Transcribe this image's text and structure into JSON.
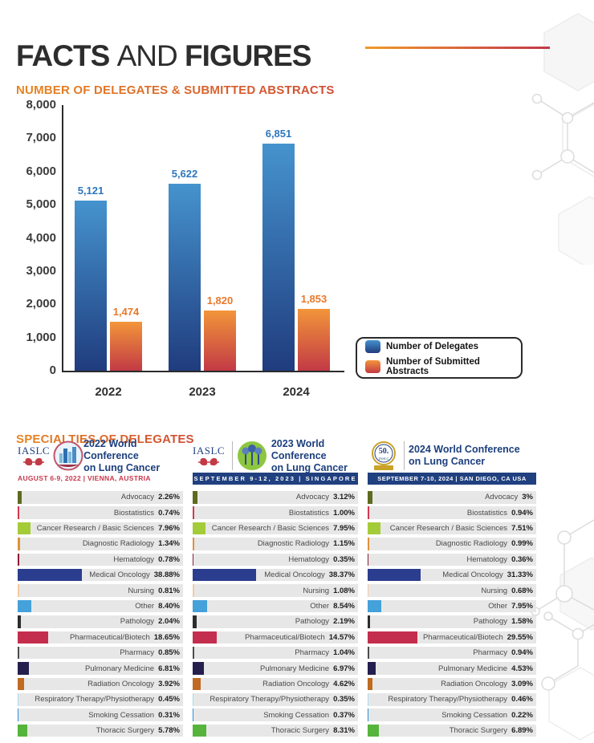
{
  "page_title": {
    "part1": "FACTS",
    "part2": "AND",
    "part3": "FIGURES"
  },
  "sections": {
    "chart_heading": "NUMBER OF DELEGATES & SUBMITTED ABSTRACTS",
    "specialties_heading": "SPECIALTIES OF DELEGATES"
  },
  "conferences": [
    {
      "org": "IASLC",
      "title_line1": "2022 World Conference",
      "title_line2": "on Lung Cancer",
      "banner": "AUGUST 6-9, 2022 | VIENNA, AUSTRIA",
      "banner_style": "red-text",
      "emblem": "vienna-city-emblem"
    },
    {
      "org": "IASLC",
      "title_line1": "2023 World Conference",
      "title_line2": "on Lung Cancer",
      "banner": "SEPTEMBER 9-12, 2023 | SINGAPORE",
      "banner_style": "navy-bar",
      "emblem": "singapore-garden-emblem"
    },
    {
      "org": "IASLC",
      "badge": "50",
      "title_line1": "2024 World Conference",
      "title_line2": "on Lung Cancer",
      "banner": "SEPTEMBER 7-10, 2024 | SAN DIEGO, CA USA",
      "banner_style": "navy-bar",
      "emblem": "50th-anniversary-badge"
    }
  ],
  "specialty_colors": [
    "#5d6b1e",
    "#d23a4e",
    "#a4cc39",
    "#e0913b",
    "#8c1d35",
    "#2b3d8f",
    "#f4cba2",
    "#44a1d9",
    "#2d2d2d",
    "#c42e4e",
    "#4d4d4d",
    "#251f4e",
    "#c06a22",
    "#a6d9f2",
    "#2f8fde",
    "#56b43c"
  ],
  "chart_data": [
    {
      "id": "delegates_abstracts",
      "type": "bar",
      "title": "NUMBER OF DELEGATES & SUBMITTED ABSTRACTS",
      "categories": [
        "2022",
        "2023",
        "2024"
      ],
      "series": [
        {
          "name": "Number of Delegates",
          "values": [
            5121,
            5622,
            6851
          ]
        },
        {
          "name": "Number of Submitted Abstracts",
          "values": [
            1474,
            1820,
            1853
          ]
        }
      ],
      "ylim": [
        0,
        8000
      ],
      "ytick_step": 1000,
      "grid": false,
      "legend_position": "bottom-right",
      "colors": {
        "delegates_top": "#4593ce",
        "delegates_bottom": "#203c7e",
        "delegates_label": "#2e77bd",
        "abstracts_top": "#f2953a",
        "abstracts_bottom": "#c23a45",
        "abstracts_label": "#e8792a"
      }
    },
    {
      "id": "specialties_2022",
      "type": "bar",
      "orientation": "horizontal",
      "title": "2022 World Conference on Lung Cancer",
      "categories": [
        "Advocacy",
        "Biostatistics",
        "Cancer Research / Basic Sciences",
        "Diagnostic Radiology",
        "Hematology",
        "Medical Oncology",
        "Nursing",
        "Other",
        "Pathology",
        "Pharmaceutical/Biotech",
        "Pharmacy",
        "Pulmonary Medicine",
        "Radiation Oncology",
        "Respiratory Therapy/Physiotherapy",
        "Smoking Cessation",
        "Thoracic Surgery"
      ],
      "values": [
        2.26,
        0.74,
        7.96,
        1.34,
        0.78,
        38.88,
        0.81,
        8.4,
        2.04,
        18.65,
        0.85,
        6.81,
        3.92,
        0.45,
        0.31,
        5.78
      ],
      "value_labels": [
        "2.26%",
        "0.74%",
        "7.96%",
        "1.34%",
        "0.78%",
        "38.88%",
        "0.81%",
        "8.40%",
        "2.04%",
        "18.65%",
        "0.85%",
        "6.81%",
        "3.92%",
        "0.45%",
        "0.31%",
        "5.78%"
      ],
      "xlim": [
        0,
        100
      ]
    },
    {
      "id": "specialties_2023",
      "type": "bar",
      "orientation": "horizontal",
      "title": "2023 World Conference on Lung Cancer",
      "categories": [
        "Advocacy",
        "Biostatistics",
        "Cancer Research / Basic Sciences",
        "Diagnostic Radiology",
        "Hematology",
        "Medical Oncology",
        "Nursing",
        "Other",
        "Pathology",
        "Pharmaceutical/Biotech",
        "Pharmacy",
        "Pulmonary Medicine",
        "Radiation Oncology",
        "Respiratory Therapy/Physiotherapy",
        "Smoking Cessation",
        "Thoracic Surgery"
      ],
      "values": [
        3.12,
        1.0,
        7.95,
        1.15,
        0.35,
        38.37,
        1.08,
        8.54,
        2.19,
        14.57,
        1.04,
        6.97,
        4.62,
        0.35,
        0.37,
        8.31
      ],
      "value_labels": [
        "3.12%",
        "1.00%",
        "7.95%",
        "1.15%",
        "0.35%",
        "38.37%",
        "1.08%",
        "8.54%",
        "2.19%",
        "14.57%",
        "1.04%",
        "6.97%",
        "4.62%",
        "0.35%",
        "0.37%",
        "8.31%"
      ],
      "xlim": [
        0,
        100
      ]
    },
    {
      "id": "specialties_2024",
      "type": "bar",
      "orientation": "horizontal",
      "title": "2024 World Conference on Lung Cancer",
      "categories": [
        "Advocacy",
        "Biostatistics",
        "Cancer Research / Basic Sciences",
        "Diagnostic Radiology",
        "Hematology",
        "Medical Oncology",
        "Nursing",
        "Other",
        "Pathology",
        "Pharmaceutical/Biotech",
        "Pharmacy",
        "Pulmonary Medicine",
        "Radiation Oncology",
        "Respiratory Therapy/Physiotherapy",
        "Smoking Cessation",
        "Thoracic Surgery"
      ],
      "values": [
        3,
        0.94,
        7.51,
        0.99,
        0.36,
        31.33,
        0.68,
        7.95,
        1.58,
        29.55,
        0.94,
        4.53,
        3.09,
        0.46,
        0.22,
        6.89
      ],
      "value_labels": [
        "3%",
        "0.94%",
        "7.51%",
        "0.99%",
        "0.36%",
        "31.33%",
        "0.68%",
        "7.95%",
        "1.58%",
        "29.55%",
        "0.94%",
        "4.53%",
        "3.09%",
        "0.46%",
        "0.22%",
        "6.89%"
      ],
      "xlim": [
        0,
        100
      ]
    }
  ],
  "colors": {
    "accent_orange": "#e8851f",
    "accent_red": "#c2374b",
    "navy": "#1c3f7d",
    "track_gray": "#e7e7e7"
  }
}
